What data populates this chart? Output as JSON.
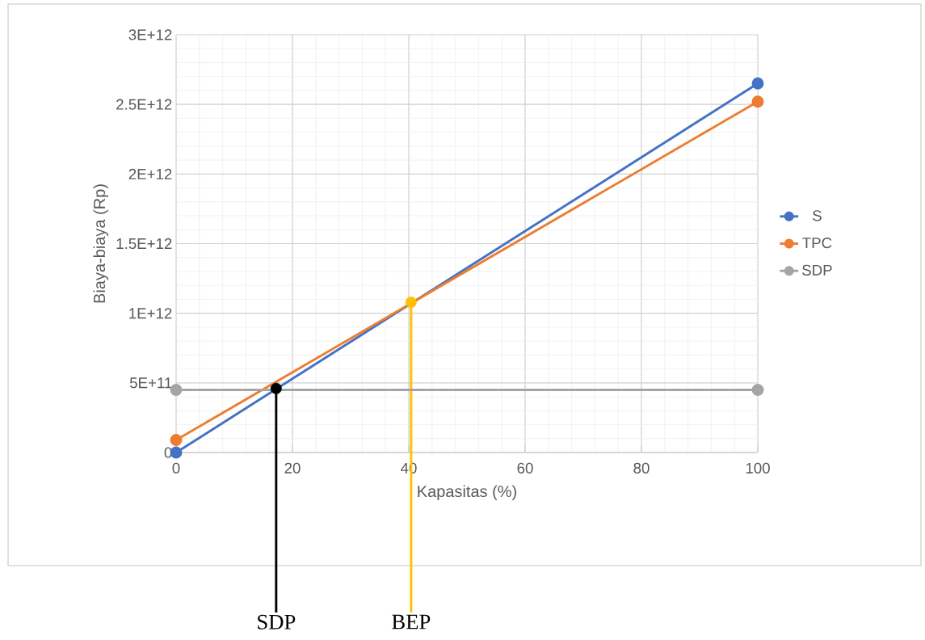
{
  "chart_data": {
    "type": "line",
    "xlabel": "Kapasitas (%)",
    "ylabel": "Biaya-biaya (Rp)",
    "x": [
      0,
      100
    ],
    "series": [
      {
        "name": "S",
        "color": "#4472c4",
        "values": [
          0,
          2650000000000
        ]
      },
      {
        "name": "TPC",
        "color": "#ed7d31",
        "values": [
          90000000000,
          2520000000000
        ]
      },
      {
        "name": "SDP",
        "color": "#a5a5a5",
        "values": [
          450000000000,
          450000000000
        ]
      },
      {
        "type": "scatter",
        "color": "#000000",
        "x": [
          17.2
        ],
        "values": [
          460000000000
        ]
      },
      {
        "type": "scatter",
        "color": "#ffc000",
        "x": [
          40.4
        ],
        "values": [
          1080000000000
        ]
      }
    ],
    "xlim": [
      0,
      100
    ],
    "xticks": [
      0,
      20,
      40,
      60,
      80,
      100
    ],
    "ylim": [
      0,
      3000000000000
    ],
    "yticks": [
      0,
      {
        "value": 500000000000,
        "label": "5E+11"
      },
      {
        "value": 1000000000000,
        "label": "1E+12"
      },
      {
        "value": 1500000000000,
        "label": "1.5E+12"
      },
      {
        "value": 2000000000000,
        "label": "2E+12"
      },
      {
        "value": 2500000000000,
        "label": "2.5E+12"
      },
      {
        "value": 3000000000000,
        "label": "3E+12"
      }
    ],
    "ref_lines": [
      {
        "axis": "x",
        "value": 17.2,
        "label": "SDP",
        "color": "#000000"
      },
      {
        "axis": "x",
        "value": 40.4,
        "label": "BEP",
        "color": "#ffc000"
      }
    ],
    "grid": true,
    "legend": "right",
    "marker": "circle"
  }
}
